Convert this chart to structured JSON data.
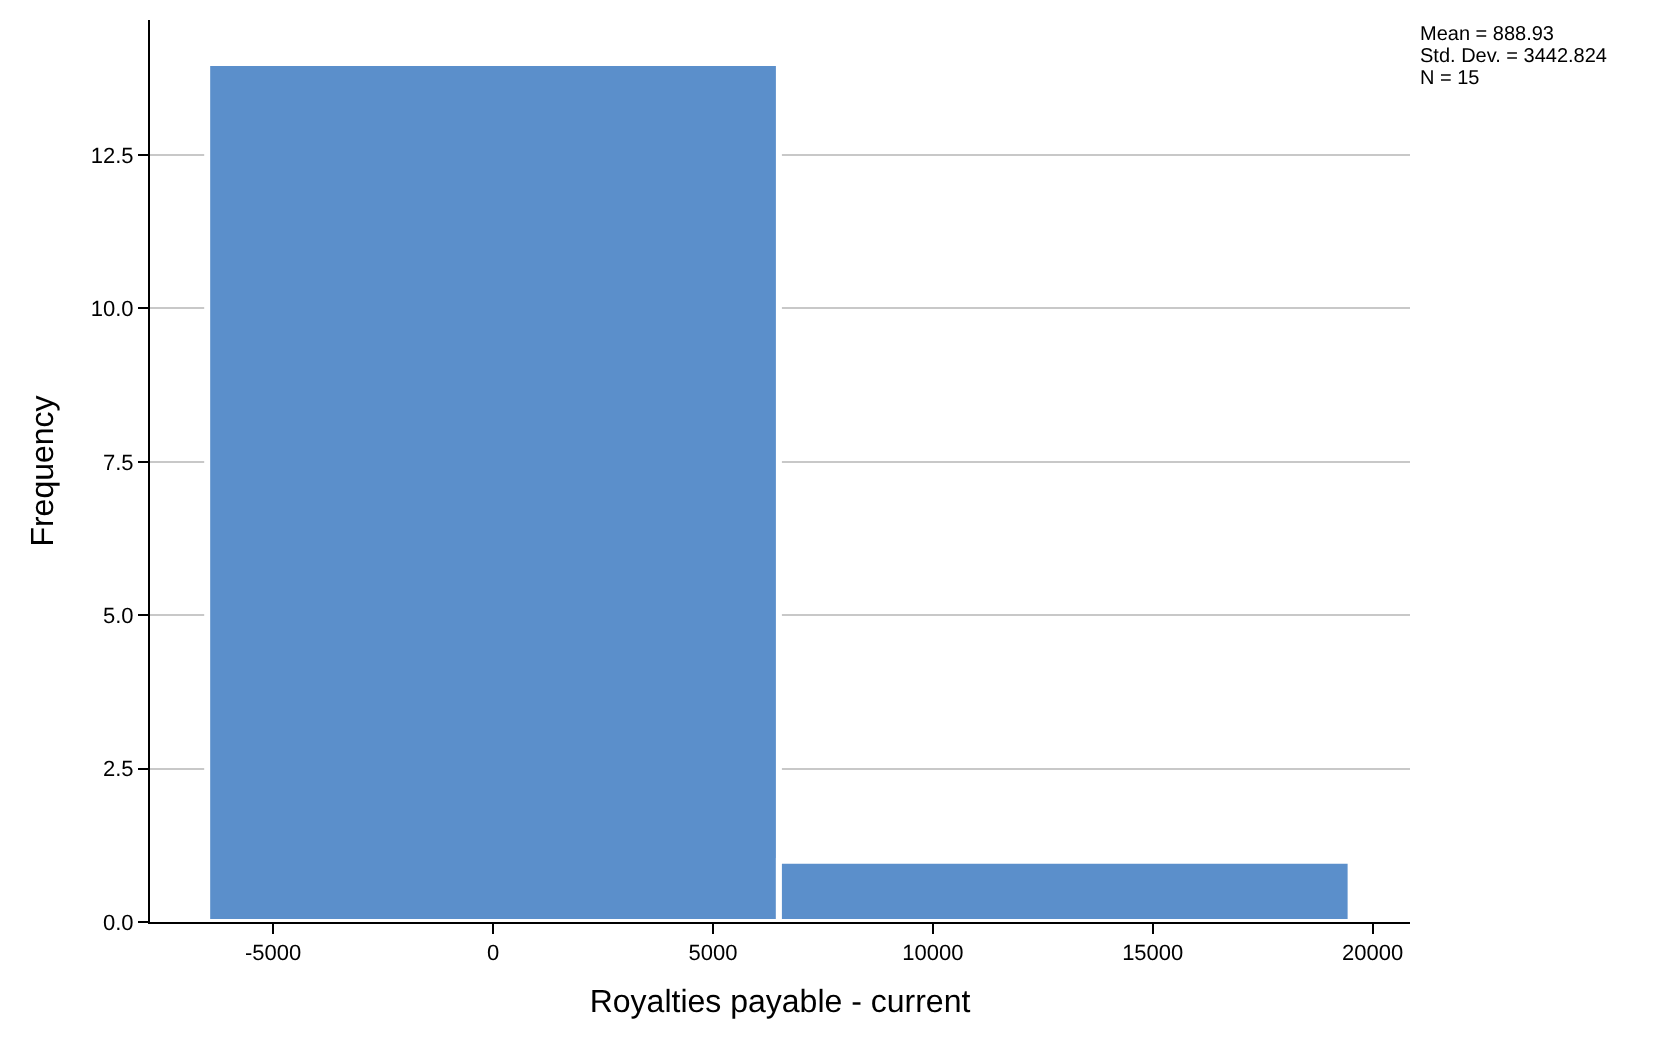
{
  "chart_data": {
    "type": "histogram",
    "xlabel": "Royalties payable - current",
    "ylabel": "Frequency",
    "bins": [
      -6500,
      6500,
      19500
    ],
    "values": [
      14,
      1
    ],
    "color": "#5b8fcb",
    "xlim": [
      -7800,
      20850
    ],
    "xticks": [
      -5000,
      0,
      5000,
      10000,
      15000,
      20000
    ],
    "ylim": [
      0,
      14.7
    ],
    "yticks": [
      {
        "value": 0,
        "label": "0.0"
      },
      {
        "value": 2.5,
        "label": "2.5"
      },
      {
        "value": 5,
        "label": "5.0"
      },
      {
        "value": 7.5,
        "label": "7.5"
      },
      {
        "value": 10,
        "label": "10.0"
      },
      {
        "value": 12.5,
        "label": "12.5"
      }
    ],
    "grid": "y",
    "annotations": [
      "Mean = 888.93",
      "Std. Dev. = 3442.824",
      "N = 15"
    ]
  }
}
